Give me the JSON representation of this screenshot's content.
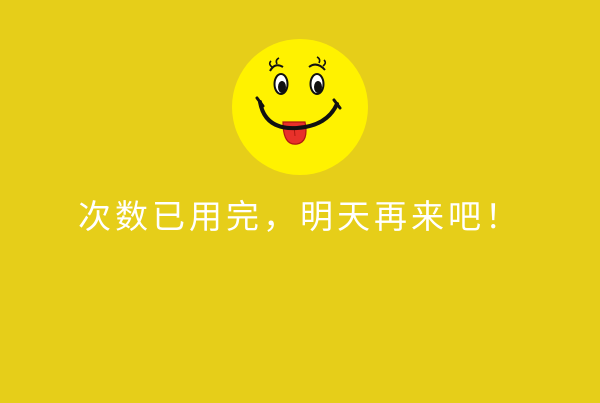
{
  "page": {
    "background_color": "#e6ce19",
    "message": "次数已用完，明天再来吧！"
  },
  "emoji": {
    "icon": "tongue-out-smiley-icon",
    "face_color": "#fff200",
    "tongue_color": "#e8312a"
  }
}
